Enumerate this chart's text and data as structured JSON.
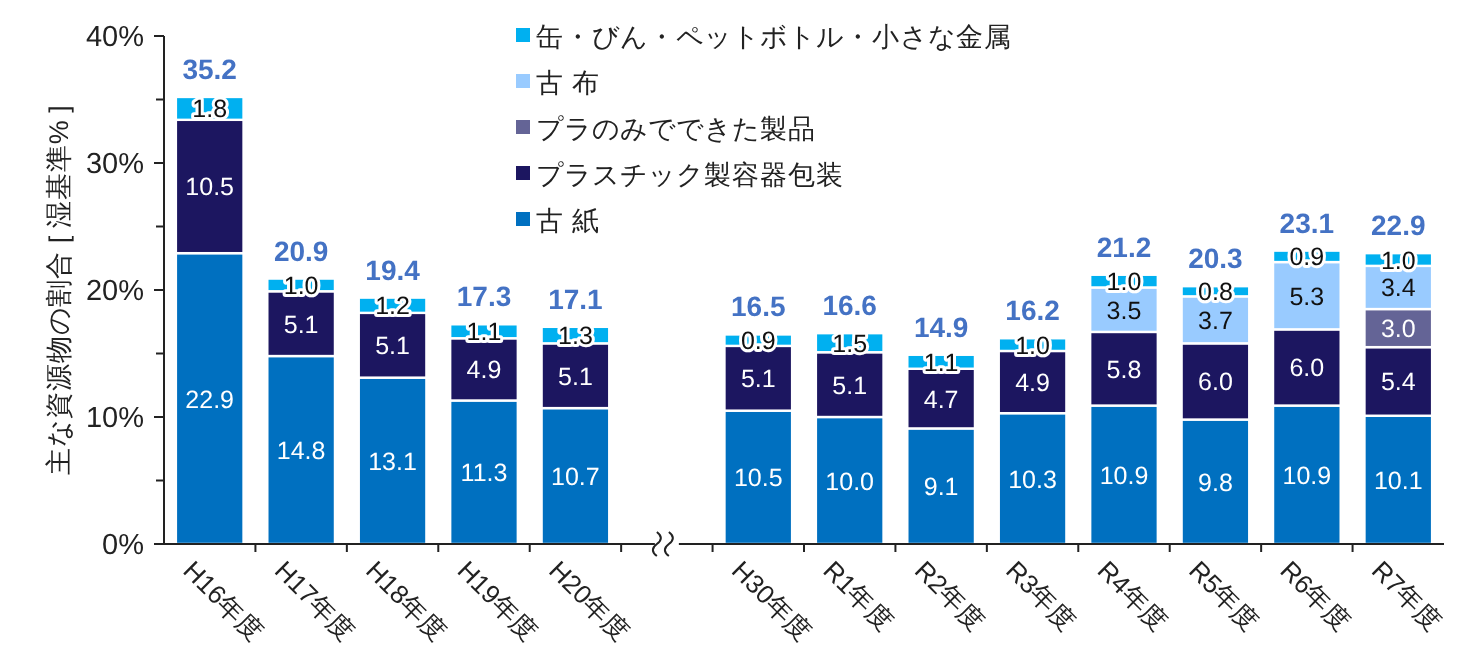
{
  "chart_data": {
    "type": "bar",
    "stacked": true,
    "legend": "top",
    "ylabel": "主な資源物の割合 [ 湿基準% ]",
    "categories": [
      "H16年度",
      "H17年度",
      "H18年度",
      "H19年度",
      "H20年度",
      null,
      "H30年度",
      "R1年度",
      "R2年度",
      "R3年度",
      "R4年度",
      "R5年度",
      "R6年度",
      "R7年度"
    ],
    "ylim": [
      0,
      40
    ],
    "yticks": [
      {
        "value": 0,
        "label": "0%"
      },
      {
        "value": 5,
        "label": null
      },
      {
        "value": 10,
        "label": "10%"
      },
      {
        "value": 15,
        "label": null
      },
      {
        "value": 20,
        "label": "20%"
      },
      {
        "value": 25,
        "label": null
      },
      {
        "value": 30,
        "label": "30%"
      },
      {
        "value": 35,
        "label": null
      },
      {
        "value": 40,
        "label": "40%"
      }
    ],
    "series": [
      {
        "name": "古 紙",
        "color": "#0070c0",
        "values": [
          22.9,
          14.8,
          13.1,
          11.3,
          10.7,
          null,
          10.5,
          10.0,
          9.1,
          10.3,
          10.9,
          9.8,
          10.9,
          10.1
        ],
        "value_labels": [
          "22.9",
          "14.8",
          "13.1",
          "11.3",
          "10.7",
          null,
          "10.5",
          "10.0",
          "9.1",
          "10.3",
          "10.9",
          "9.8",
          "10.9",
          "10.1"
        ]
      },
      {
        "name": "プラスチック製容器包装",
        "color": "#1c1660",
        "values": [
          10.5,
          5.1,
          5.1,
          4.9,
          5.1,
          null,
          5.1,
          5.1,
          4.7,
          4.9,
          5.8,
          6.0,
          6.0,
          5.4
        ],
        "value_labels": [
          "10.5",
          "5.1",
          "5.1",
          "4.9",
          "5.1",
          null,
          "5.1",
          "5.1",
          "4.7",
          "4.9",
          "5.8",
          "6.0",
          "6.0",
          "5.4"
        ]
      },
      {
        "name": "プラのみでできた製品",
        "color": "#646496",
        "values": [
          null,
          null,
          null,
          null,
          null,
          null,
          null,
          null,
          null,
          null,
          null,
          null,
          null,
          3.0
        ],
        "value_labels": [
          null,
          null,
          null,
          null,
          null,
          null,
          null,
          null,
          null,
          null,
          null,
          null,
          null,
          "3.0"
        ]
      },
      {
        "name": "古 布",
        "color": "#99cbff",
        "values": [
          null,
          null,
          null,
          null,
          null,
          null,
          null,
          null,
          null,
          null,
          3.5,
          3.7,
          5.3,
          3.4
        ],
        "value_labels": [
          null,
          null,
          null,
          null,
          null,
          null,
          null,
          null,
          null,
          null,
          "3.5",
          "3.7",
          "5.3",
          "3.4"
        ]
      },
      {
        "name": "缶・びん・ペットボトル・小さな金属",
        "color": "#00b0f0",
        "values": [
          1.8,
          1.0,
          1.2,
          1.1,
          1.3,
          null,
          0.9,
          1.5,
          1.1,
          1.0,
          1.0,
          0.8,
          0.9,
          1.0
        ],
        "value_labels": [
          "1.8",
          "1.0",
          "1.2",
          "1.1",
          "1.3",
          null,
          "0.9",
          "1.5",
          "1.1",
          "1.0",
          "1.0",
          "0.8",
          "0.9",
          "1.0"
        ]
      }
    ],
    "totals": [
      "35.2",
      "20.9",
      "19.4",
      "17.3",
      "17.1",
      null,
      "16.5",
      "16.6",
      "14.9",
      "16.2",
      "21.2",
      "20.3",
      "23.1",
      "22.9"
    ]
  }
}
